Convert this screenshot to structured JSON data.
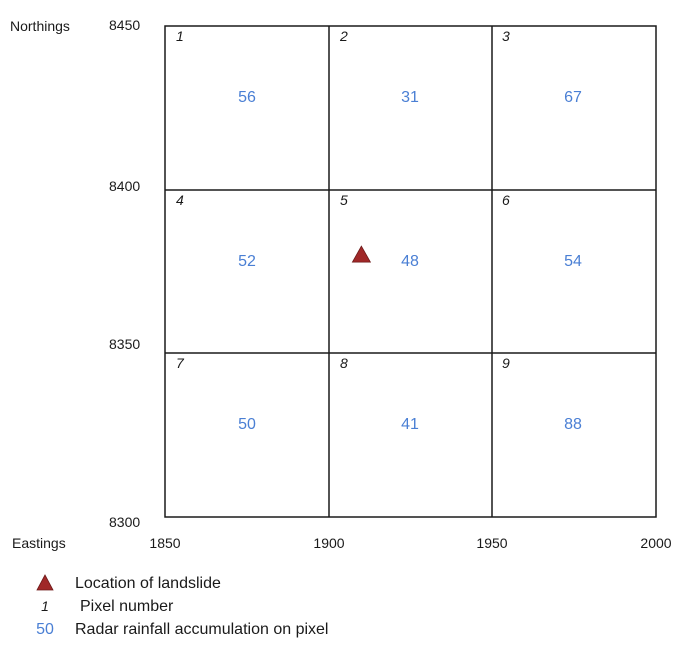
{
  "axes": {
    "y_title": "Northings",
    "x_title": "Eastings",
    "y_ticks": [
      "8450",
      "8400",
      "8350",
      "8300"
    ],
    "x_ticks": [
      "1850",
      "1900",
      "1950",
      "2000"
    ]
  },
  "grid": {
    "rows": 3,
    "cols": 3,
    "pixels": [
      {
        "number": "1",
        "rainfall": "56"
      },
      {
        "number": "2",
        "rainfall": "31"
      },
      {
        "number": "3",
        "rainfall": "67"
      },
      {
        "number": "4",
        "rainfall": "52"
      },
      {
        "number": "5",
        "rainfall": "48"
      },
      {
        "number": "6",
        "rainfall": "54"
      },
      {
        "number": "7",
        "rainfall": "50"
      },
      {
        "number": "8",
        "rainfall": "41"
      },
      {
        "number": "9",
        "rainfall": "88"
      }
    ]
  },
  "landslide": {
    "easting": 1910,
    "northing": 8380,
    "color": "#a02828"
  },
  "legend": {
    "landslide_label": "Location of landslide",
    "pixel_symbol": "1",
    "pixel_label": "Pixel number",
    "rain_symbol": "50",
    "rain_label": "Radar rainfall accumulation on pixel"
  },
  "colors": {
    "rain_value": "#4a7fd4",
    "landslide_marker": "#a02828"
  }
}
